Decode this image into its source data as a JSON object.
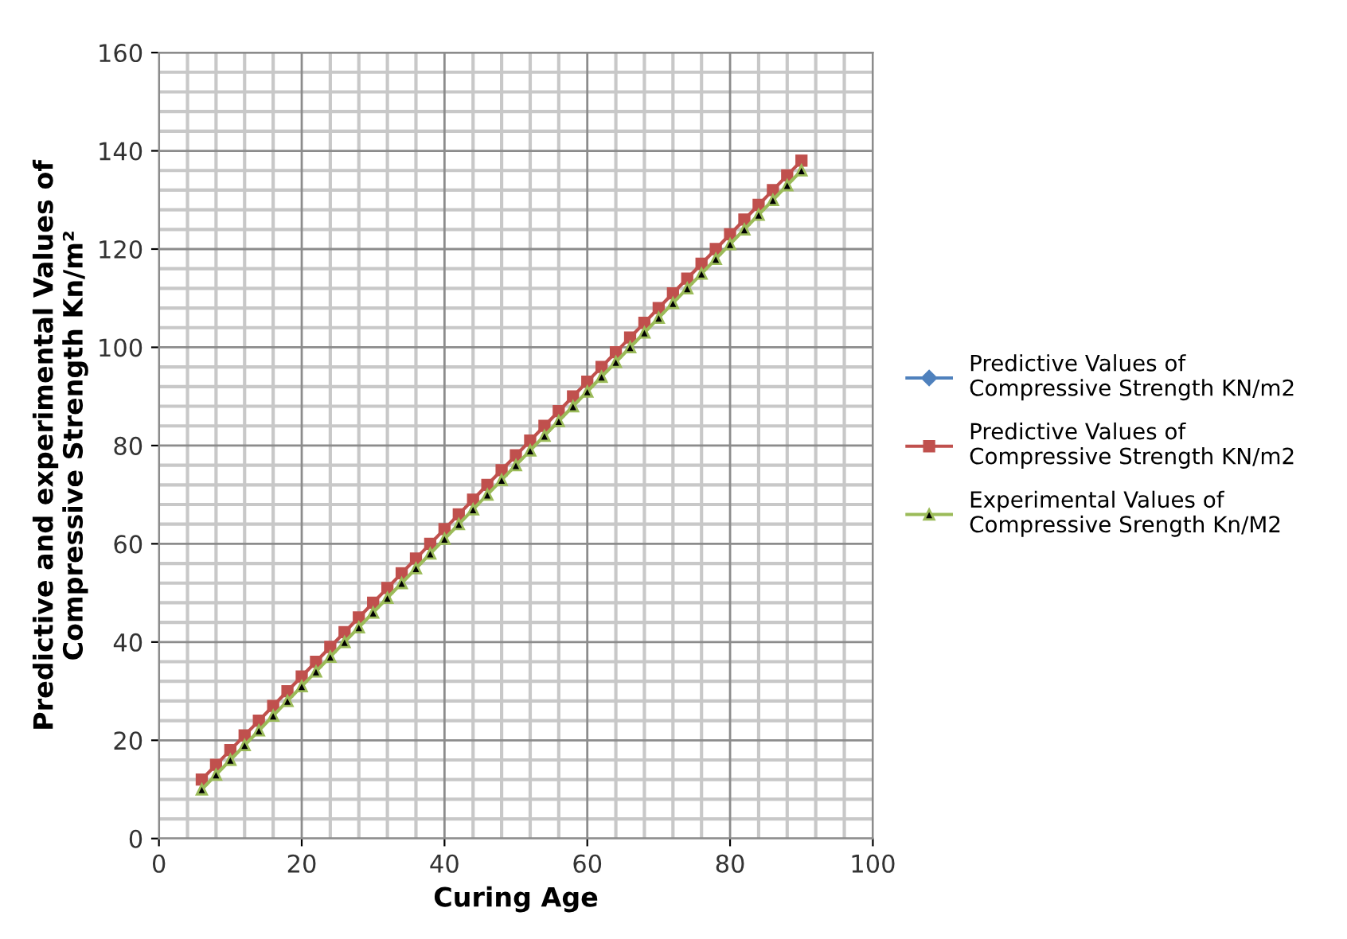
{
  "chart_data": {
    "type": "line",
    "xlabel": "Curing Age",
    "ylabel": "Predictive and experimental Values of\nCompressive Strength Kn/m²",
    "x": [
      6,
      8,
      10,
      12,
      14,
      16,
      18,
      20,
      22,
      24,
      26,
      28,
      30,
      32,
      34,
      36,
      38,
      40,
      42,
      44,
      46,
      48,
      50,
      52,
      54,
      56,
      58,
      60,
      62,
      64,
      66,
      68,
      70,
      72,
      74,
      76,
      78,
      80,
      82,
      84,
      86,
      88,
      90
    ],
    "series": [
      {
        "name": "Predictive Values of\nCompressive Strength KN/m2",
        "color": "#4f81bd",
        "marker": "diamond",
        "values": [
          null,
          null,
          null,
          null,
          null,
          null,
          null,
          null,
          null,
          null,
          null,
          null,
          null,
          null,
          null,
          null,
          null,
          null,
          null,
          null,
          null,
          null,
          null,
          null,
          null,
          null,
          null,
          null,
          null,
          null,
          null,
          null,
          null,
          null,
          null,
          null,
          null,
          null,
          null,
          null,
          null,
          null,
          null
        ]
      },
      {
        "name": "Predictive Values of\nCompressive Strength KN/m2",
        "color": "#c0504d",
        "marker": "square",
        "values": [
          12,
          15,
          18,
          21,
          24,
          27,
          30,
          33,
          36,
          39,
          42,
          45,
          48,
          51,
          54,
          57,
          60,
          63,
          66,
          69,
          72,
          75,
          78,
          81,
          84,
          87,
          90,
          93,
          96,
          99,
          102,
          105,
          108,
          111,
          114,
          117,
          120,
          123,
          126,
          129,
          132,
          135,
          138
        ]
      },
      {
        "name": "Experimental Values of\nCompressive Srength Kn/M2",
        "color": "#9bbb59",
        "marker": "triangle",
        "values": [
          10,
          13,
          16,
          19,
          22,
          25,
          28,
          31,
          34,
          37,
          40,
          43,
          46,
          49,
          52,
          55,
          58,
          61,
          64,
          67,
          70,
          73,
          76,
          79,
          82,
          85,
          88,
          91,
          94,
          97,
          100,
          103,
          106,
          109,
          112,
          115,
          118,
          121,
          124,
          127,
          130,
          133,
          136
        ]
      }
    ],
    "xlim": [
      0,
      100
    ],
    "xticks": [
      0,
      20,
      40,
      60,
      80,
      100
    ],
    "ylim": [
      0,
      160
    ],
    "yticks": [
      0,
      20,
      40,
      60,
      80,
      100,
      120,
      140,
      160
    ],
    "grid": true,
    "legend": "right"
  }
}
